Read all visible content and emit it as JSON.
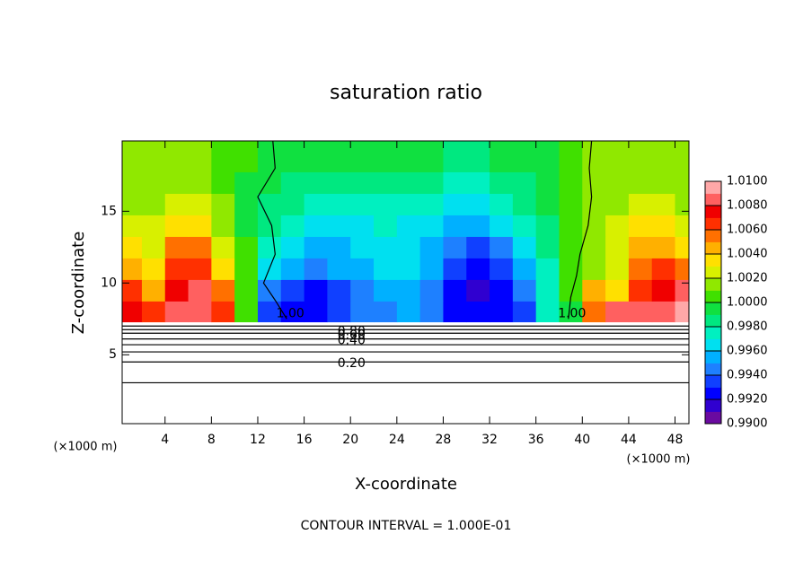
{
  "chart_data": {
    "type": "contour",
    "title": "saturation ratio",
    "x_label": "X-coordinate",
    "y_label": "Z-coordinate",
    "x_unit": "(×1000 m)",
    "y_unit": "(×1000 m)",
    "footer": "CONTOUR INTERVAL = 1.000E-01",
    "xlim": [
      0.3,
      49.2
    ],
    "ylim": [
      0.2,
      19.9
    ],
    "xticks": [
      4,
      8,
      12,
      16,
      20,
      24,
      28,
      32,
      36,
      40,
      44,
      48
    ],
    "yticks": [
      5,
      10,
      15
    ],
    "field": {
      "ground": 7.3,
      "x": [
        1,
        3,
        5,
        7,
        9,
        11,
        13,
        15,
        17,
        19,
        21,
        23,
        25,
        27,
        29,
        31,
        33,
        35,
        37,
        39,
        41,
        43,
        45,
        47,
        49
      ],
      "z": [
        8,
        9.5,
        11,
        12.5,
        14,
        15.5,
        17,
        18.5
      ],
      "values": [
        [
          1.007,
          1.006,
          1.008,
          1.008,
          1.006,
          1.0,
          0.993,
          0.992,
          0.992,
          0.993,
          0.994,
          0.994,
          0.995,
          0.994,
          0.992,
          0.992,
          0.992,
          0.993,
          0.997,
          0.999,
          1.005,
          1.008,
          1.008,
          1.008,
          1.009
        ],
        [
          1.006,
          1.004,
          1.007,
          1.008,
          1.005,
          1.0,
          0.994,
          0.993,
          0.992,
          0.993,
          0.994,
          0.995,
          0.995,
          0.994,
          0.992,
          0.991,
          0.992,
          0.994,
          0.997,
          1.0,
          1.004,
          1.003,
          1.006,
          1.007,
          1.008
        ],
        [
          1.004,
          1.003,
          1.006,
          1.006,
          1.003,
          1.0,
          0.996,
          0.995,
          0.994,
          0.995,
          0.995,
          0.996,
          0.996,
          0.995,
          0.993,
          0.992,
          0.993,
          0.995,
          0.997,
          1.0,
          1.001,
          1.002,
          1.005,
          1.006,
          1.005
        ],
        [
          1.003,
          1.002,
          1.005,
          1.005,
          1.002,
          1.0,
          0.997,
          0.996,
          0.995,
          0.995,
          0.996,
          0.996,
          0.996,
          0.995,
          0.994,
          0.993,
          0.994,
          0.996,
          0.998,
          1.0,
          1.001,
          1.002,
          1.004,
          1.004,
          1.003
        ],
        [
          1.002,
          1.002,
          1.003,
          1.003,
          1.001,
          0.999,
          0.998,
          0.997,
          0.996,
          0.996,
          0.996,
          0.997,
          0.996,
          0.996,
          0.995,
          0.995,
          0.996,
          0.997,
          0.998,
          1.0,
          1.001,
          1.002,
          1.003,
          1.003,
          1.002
        ],
        [
          1.001,
          1.001,
          1.002,
          1.002,
          1.001,
          0.999,
          0.998,
          0.998,
          0.997,
          0.997,
          0.997,
          0.997,
          0.997,
          0.997,
          0.996,
          0.996,
          0.997,
          0.998,
          0.999,
          1.0,
          1.001,
          1.001,
          1.002,
          1.002,
          1.001
        ],
        [
          1.001,
          1.001,
          1.001,
          1.001,
          1.0,
          0.999,
          0.999,
          0.998,
          0.998,
          0.998,
          0.998,
          0.998,
          0.998,
          0.998,
          0.997,
          0.997,
          0.998,
          0.998,
          0.999,
          1.0,
          1.001,
          1.001,
          1.001,
          1.001,
          1.001
        ],
        [
          1.001,
          1.001,
          1.001,
          1.001,
          1.0,
          1.0,
          0.999,
          0.999,
          0.999,
          0.999,
          0.999,
          0.999,
          0.999,
          0.999,
          0.998,
          0.998,
          0.999,
          0.999,
          0.999,
          1.0,
          1.001,
          1.001,
          1.001,
          1.001,
          1.001
        ]
      ]
    },
    "contours": [
      {
        "label": "1.00",
        "x": [
          14.5,
          13.5,
          12.5,
          13.5,
          13.2,
          12.0,
          13.5,
          13.3
        ],
        "z": [
          7.5,
          8.8,
          10,
          12,
          14,
          16,
          18,
          19.9
        ]
      },
      {
        "label": "1.00",
        "x": [
          38.8,
          39.0,
          39.5,
          39.8,
          40.5,
          40.8,
          40.6,
          40.8
        ],
        "z": [
          7.5,
          9.0,
          10.5,
          12,
          14,
          16,
          18,
          19.9
        ]
      },
      {
        "label": null,
        "x": [
          0.3,
          49.2
        ],
        "z": [
          7.0,
          7.0
        ]
      },
      {
        "label": "0.80",
        "x": [
          0.3,
          49.2
        ],
        "z": [
          6.75,
          6.75
        ]
      },
      {
        "label": "0.60",
        "x": [
          0.3,
          49.2
        ],
        "z": [
          6.5,
          6.5
        ]
      },
      {
        "label": "0.40",
        "x": [
          0.3,
          49.2
        ],
        "z": [
          6.1,
          6.1
        ]
      },
      {
        "label": null,
        "x": [
          0.3,
          49.2
        ],
        "z": [
          5.7,
          5.7
        ]
      },
      {
        "label": null,
        "x": [
          0.3,
          49.2
        ],
        "z": [
          5.2,
          5.2
        ]
      },
      {
        "label": "0.20",
        "x": [
          0.3,
          49.2
        ],
        "z": [
          4.5,
          4.5
        ]
      },
      {
        "label": null,
        "x": [
          0.3,
          49.2
        ],
        "z": [
          3.05,
          3.05
        ]
      }
    ],
    "colorbar": {
      "lim": [
        0.99,
        1.01
      ],
      "step": 0.001,
      "colors": [
        "#6a0aa0",
        "#3000d0",
        "#0000ff",
        "#1040ff",
        "#1e80ff",
        "#00b0ff",
        "#00e0f0",
        "#00f0c0",
        "#00e880",
        "#10e040",
        "#40e000",
        "#90e800",
        "#d8f000",
        "#ffe000",
        "#ffb000",
        "#ff7000",
        "#ff3000",
        "#f00000",
        "#ff6060",
        "#ffa8a8"
      ],
      "ticks": [
        {
          "value": 0.99,
          "label": "0.9900"
        },
        {
          "value": 0.992,
          "label": "0.9920"
        },
        {
          "value": 0.994,
          "label": "0.9940"
        },
        {
          "value": 0.996,
          "label": "0.9960"
        },
        {
          "value": 0.998,
          "label": "0.9980"
        },
        {
          "value": 1.0,
          "label": "1.0000"
        },
        {
          "value": 1.002,
          "label": "1.0020"
        },
        {
          "value": 1.004,
          "label": "1.0040"
        },
        {
          "value": 1.006,
          "label": "1.0060"
        },
        {
          "value": 1.008,
          "label": "1.0080"
        },
        {
          "value": 1.01,
          "label": "1.0100"
        }
      ]
    }
  }
}
